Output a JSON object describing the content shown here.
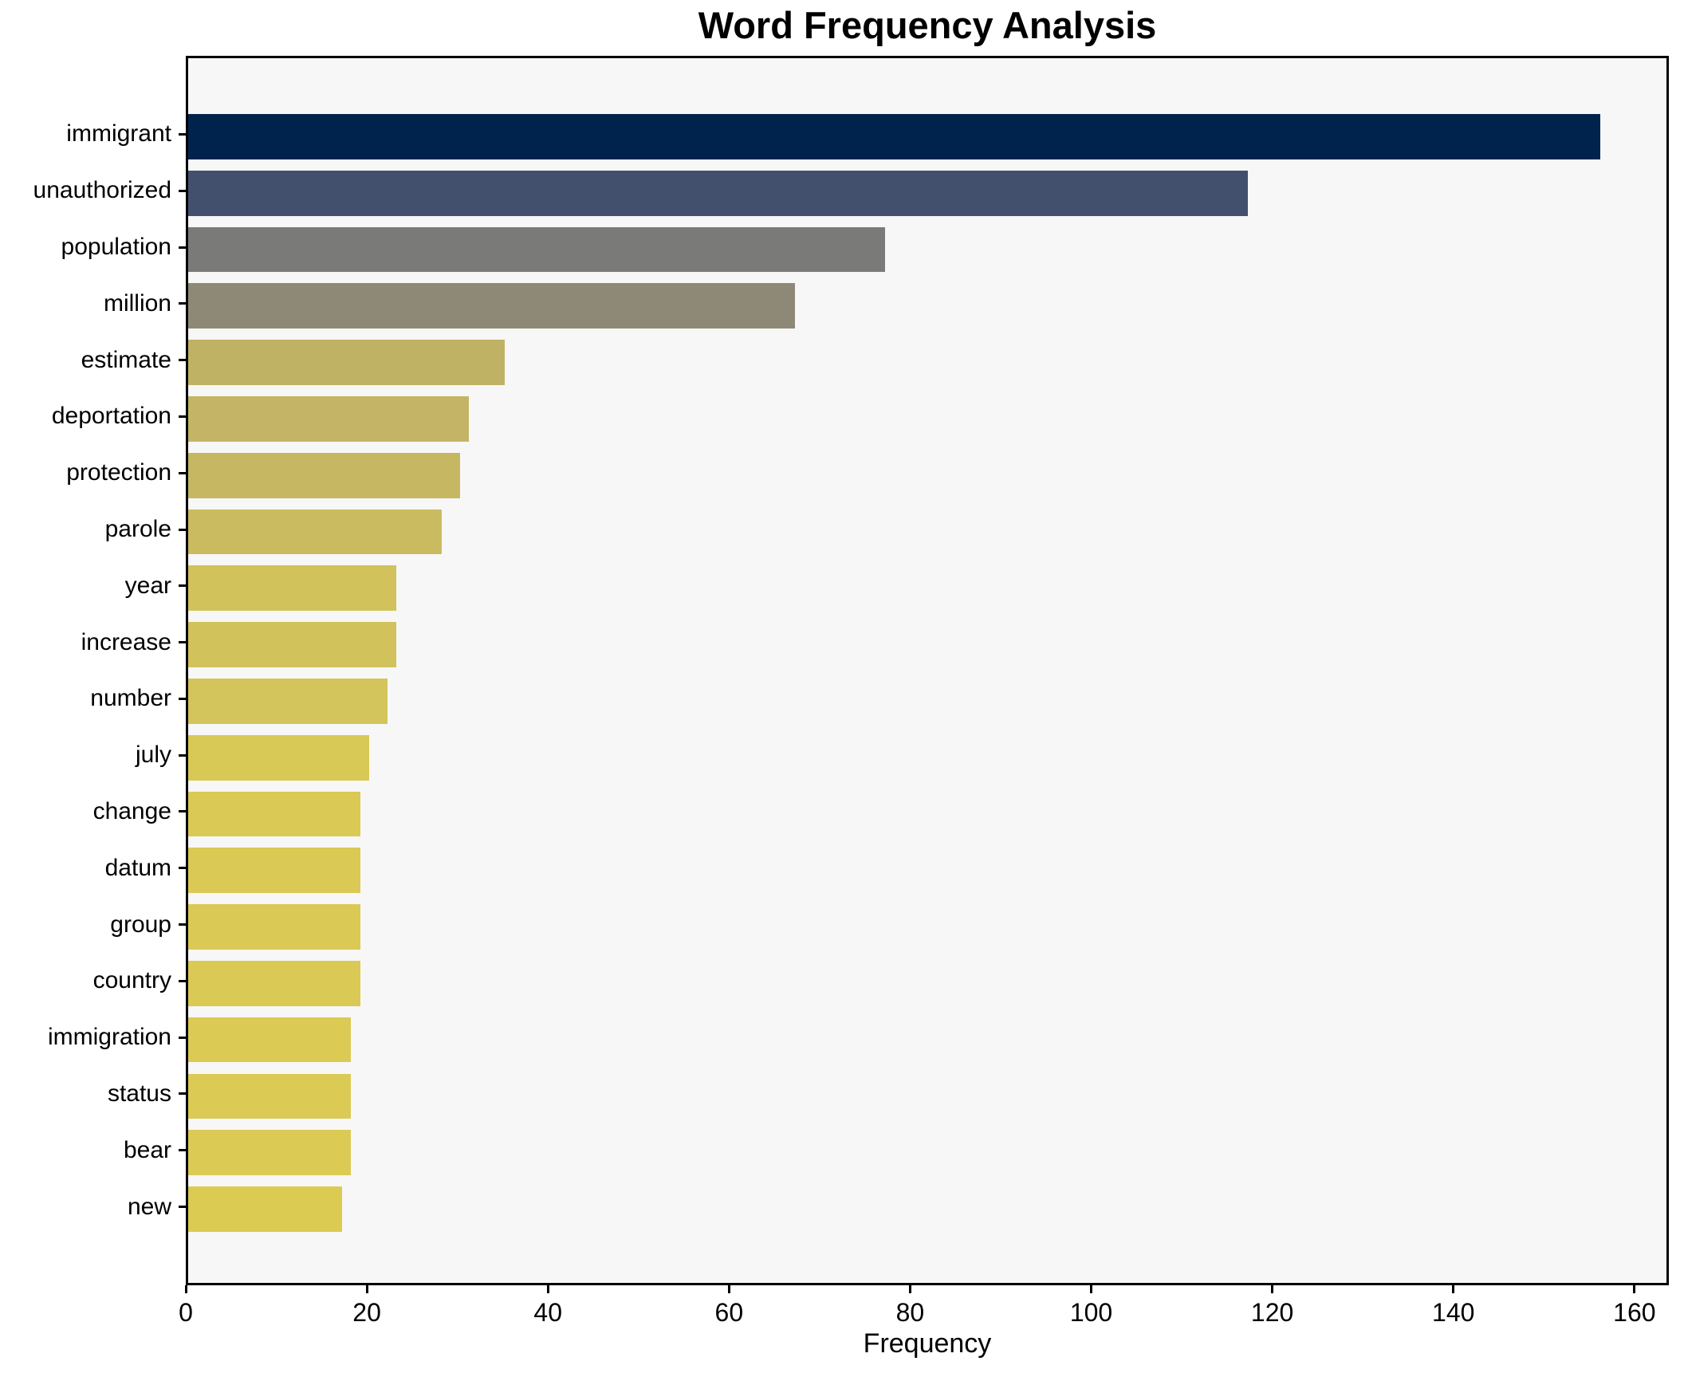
{
  "chart_data": {
    "type": "bar",
    "orientation": "horizontal",
    "title": "Word Frequency Analysis",
    "xlabel": "Frequency",
    "ylabel": "",
    "categories": [
      "immigrant",
      "unauthorized",
      "population",
      "million",
      "estimate",
      "deportation",
      "protection",
      "parole",
      "year",
      "increase",
      "number",
      "july",
      "change",
      "datum",
      "group",
      "country",
      "immigration",
      "status",
      "bear",
      "new"
    ],
    "values": [
      156,
      117,
      77,
      67,
      35,
      31,
      30,
      28,
      23,
      23,
      22,
      20,
      19,
      19,
      19,
      19,
      18,
      18,
      18,
      17
    ],
    "bar_colors": [
      "#00234e",
      "#42506e",
      "#7a7a78",
      "#8e8977",
      "#bfb264",
      "#c3b565",
      "#c6b763",
      "#cabb61",
      "#d1c25c",
      "#d1c25c",
      "#d3c45b",
      "#d8c856",
      "#dac954",
      "#dac954",
      "#dac954",
      "#dac954",
      "#dbca53",
      "#dbca53",
      "#dbca53",
      "#dccb52"
    ],
    "x_ticks": [
      0,
      20,
      40,
      60,
      80,
      100,
      120,
      140,
      160
    ],
    "xlim": [
      0,
      163.8
    ],
    "grid": false,
    "legend": null,
    "plot_background": "#f7f7f7",
    "figure_background": "#ffffff",
    "axis_color": "#000000"
  }
}
